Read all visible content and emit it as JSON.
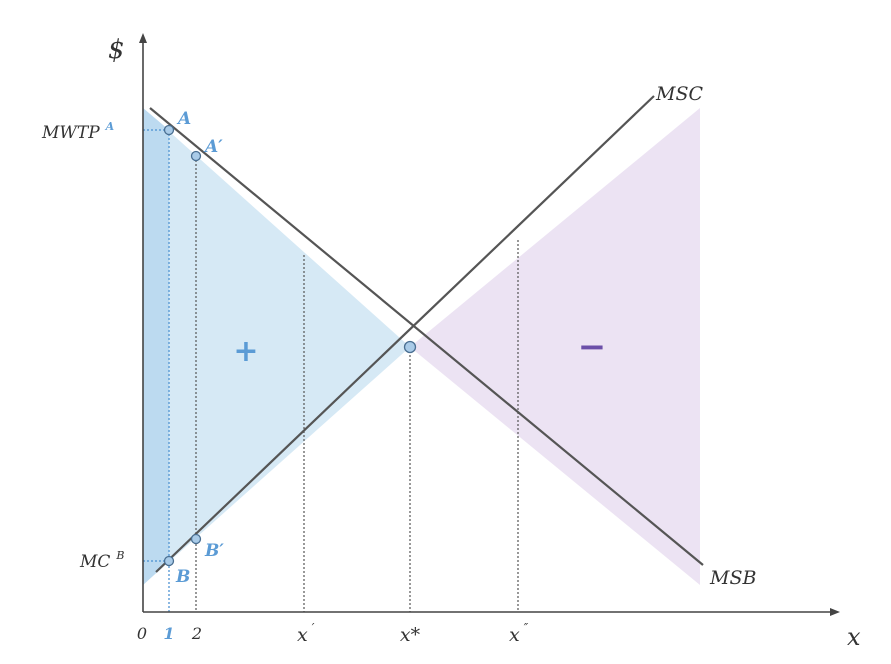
{
  "axes": {
    "y_label": "$",
    "x_label": "x"
  },
  "curves": {
    "msc_label": "MSC",
    "msb_label": "MSB"
  },
  "points": {
    "a": "A",
    "a_prime": "A′",
    "b": "B",
    "b_prime": "B′"
  },
  "y_ticks": {
    "mwtp": "MWTP",
    "mwtp_sup": "A",
    "mc": "MC",
    "mc_sup": "B"
  },
  "x_ticks": {
    "zero": "0",
    "one": "1",
    "two": "2",
    "x_prime": "x",
    "x_prime_sup": "′",
    "x_star": "x*",
    "x_dprime": "x",
    "x_dprime_sup": "″"
  },
  "regions": {
    "gain_sign": "+",
    "loss_sign": "−"
  },
  "colors": {
    "gain_fill": "#d6e9f5",
    "gain_strip": "#bcdaf0",
    "loss_fill": "#ece3f3",
    "accent_blue": "#5b9bd5"
  }
}
